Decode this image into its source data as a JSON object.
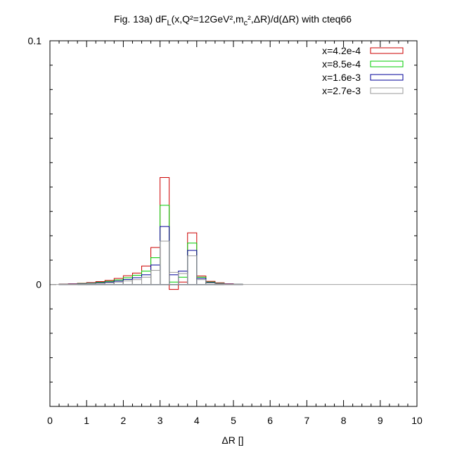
{
  "chart_data": {
    "type": "histogram",
    "title": {
      "prefix": "Fig. 13a) dF",
      "sub1": "L",
      "mid1": "(x,Q²=12GeV²,m",
      "sub2": "c",
      "suffix": "²,ΔR)/d(ΔR) with cteq66"
    },
    "xlabel": "ΔR []",
    "ylabel": "",
    "xlim": [
      0,
      10
    ],
    "ylim": [
      -0.05,
      0.1
    ],
    "x_ticks": [
      0,
      1,
      2,
      3,
      4,
      5,
      6,
      7,
      8,
      9,
      10
    ],
    "x_tick_labels": [
      "0",
      "1",
      "2",
      "3",
      "4",
      "5",
      "6",
      "7",
      "8",
      "9",
      "10"
    ],
    "y_ticks": [
      0,
      0.1
    ],
    "y_tick_labels": [
      "0",
      "0.1"
    ],
    "legend_position": "top-right",
    "bin_edges": [
      0.25,
      0.5,
      0.75,
      1.0,
      1.25,
      1.5,
      1.75,
      2.0,
      2.25,
      2.5,
      2.75,
      3.0,
      3.25,
      3.5,
      3.75,
      4.0,
      4.25,
      4.5,
      4.75,
      5.0,
      5.25
    ],
    "series": [
      {
        "name": "x=4.2e-4",
        "color": "#cc0000",
        "values": [
          0.0002,
          0.0003,
          0.0005,
          0.0008,
          0.0012,
          0.0017,
          0.0025,
          0.0036,
          0.0047,
          0.0076,
          0.0152,
          0.0439,
          -0.002,
          0.001,
          0.0212,
          0.0035,
          0.0013,
          0.0007,
          0.0003,
          0.0001
        ]
      },
      {
        "name": "x=8.5e-4",
        "color": "#00cc00",
        "values": [
          0.0001,
          0.0002,
          0.0004,
          0.0006,
          0.0009,
          0.0013,
          0.0019,
          0.0028,
          0.0038,
          0.0055,
          0.011,
          0.0325,
          0.001,
          0.003,
          0.017,
          0.003,
          0.001,
          0.0005,
          0.0002,
          0.0001
        ]
      },
      {
        "name": "x=1.6e-3",
        "color": "#000099",
        "values": [
          0.0001,
          0.0002,
          0.0003,
          0.0005,
          0.0007,
          0.001,
          0.0014,
          0.0021,
          0.0028,
          0.004,
          0.008,
          0.0238,
          0.004,
          0.0055,
          0.014,
          0.0025,
          0.0008,
          0.0004,
          0.0002,
          0.0001
        ]
      },
      {
        "name": "x=2.7e-3",
        "color": "#999999",
        "values": [
          0.0001,
          0.0001,
          0.0002,
          0.0004,
          0.0005,
          0.0007,
          0.001,
          0.0015,
          0.002,
          0.003,
          0.0058,
          0.0178,
          0.005,
          0.0045,
          0.0118,
          0.002,
          0.0006,
          0.0003,
          0.0001,
          0.0001
        ]
      }
    ]
  }
}
